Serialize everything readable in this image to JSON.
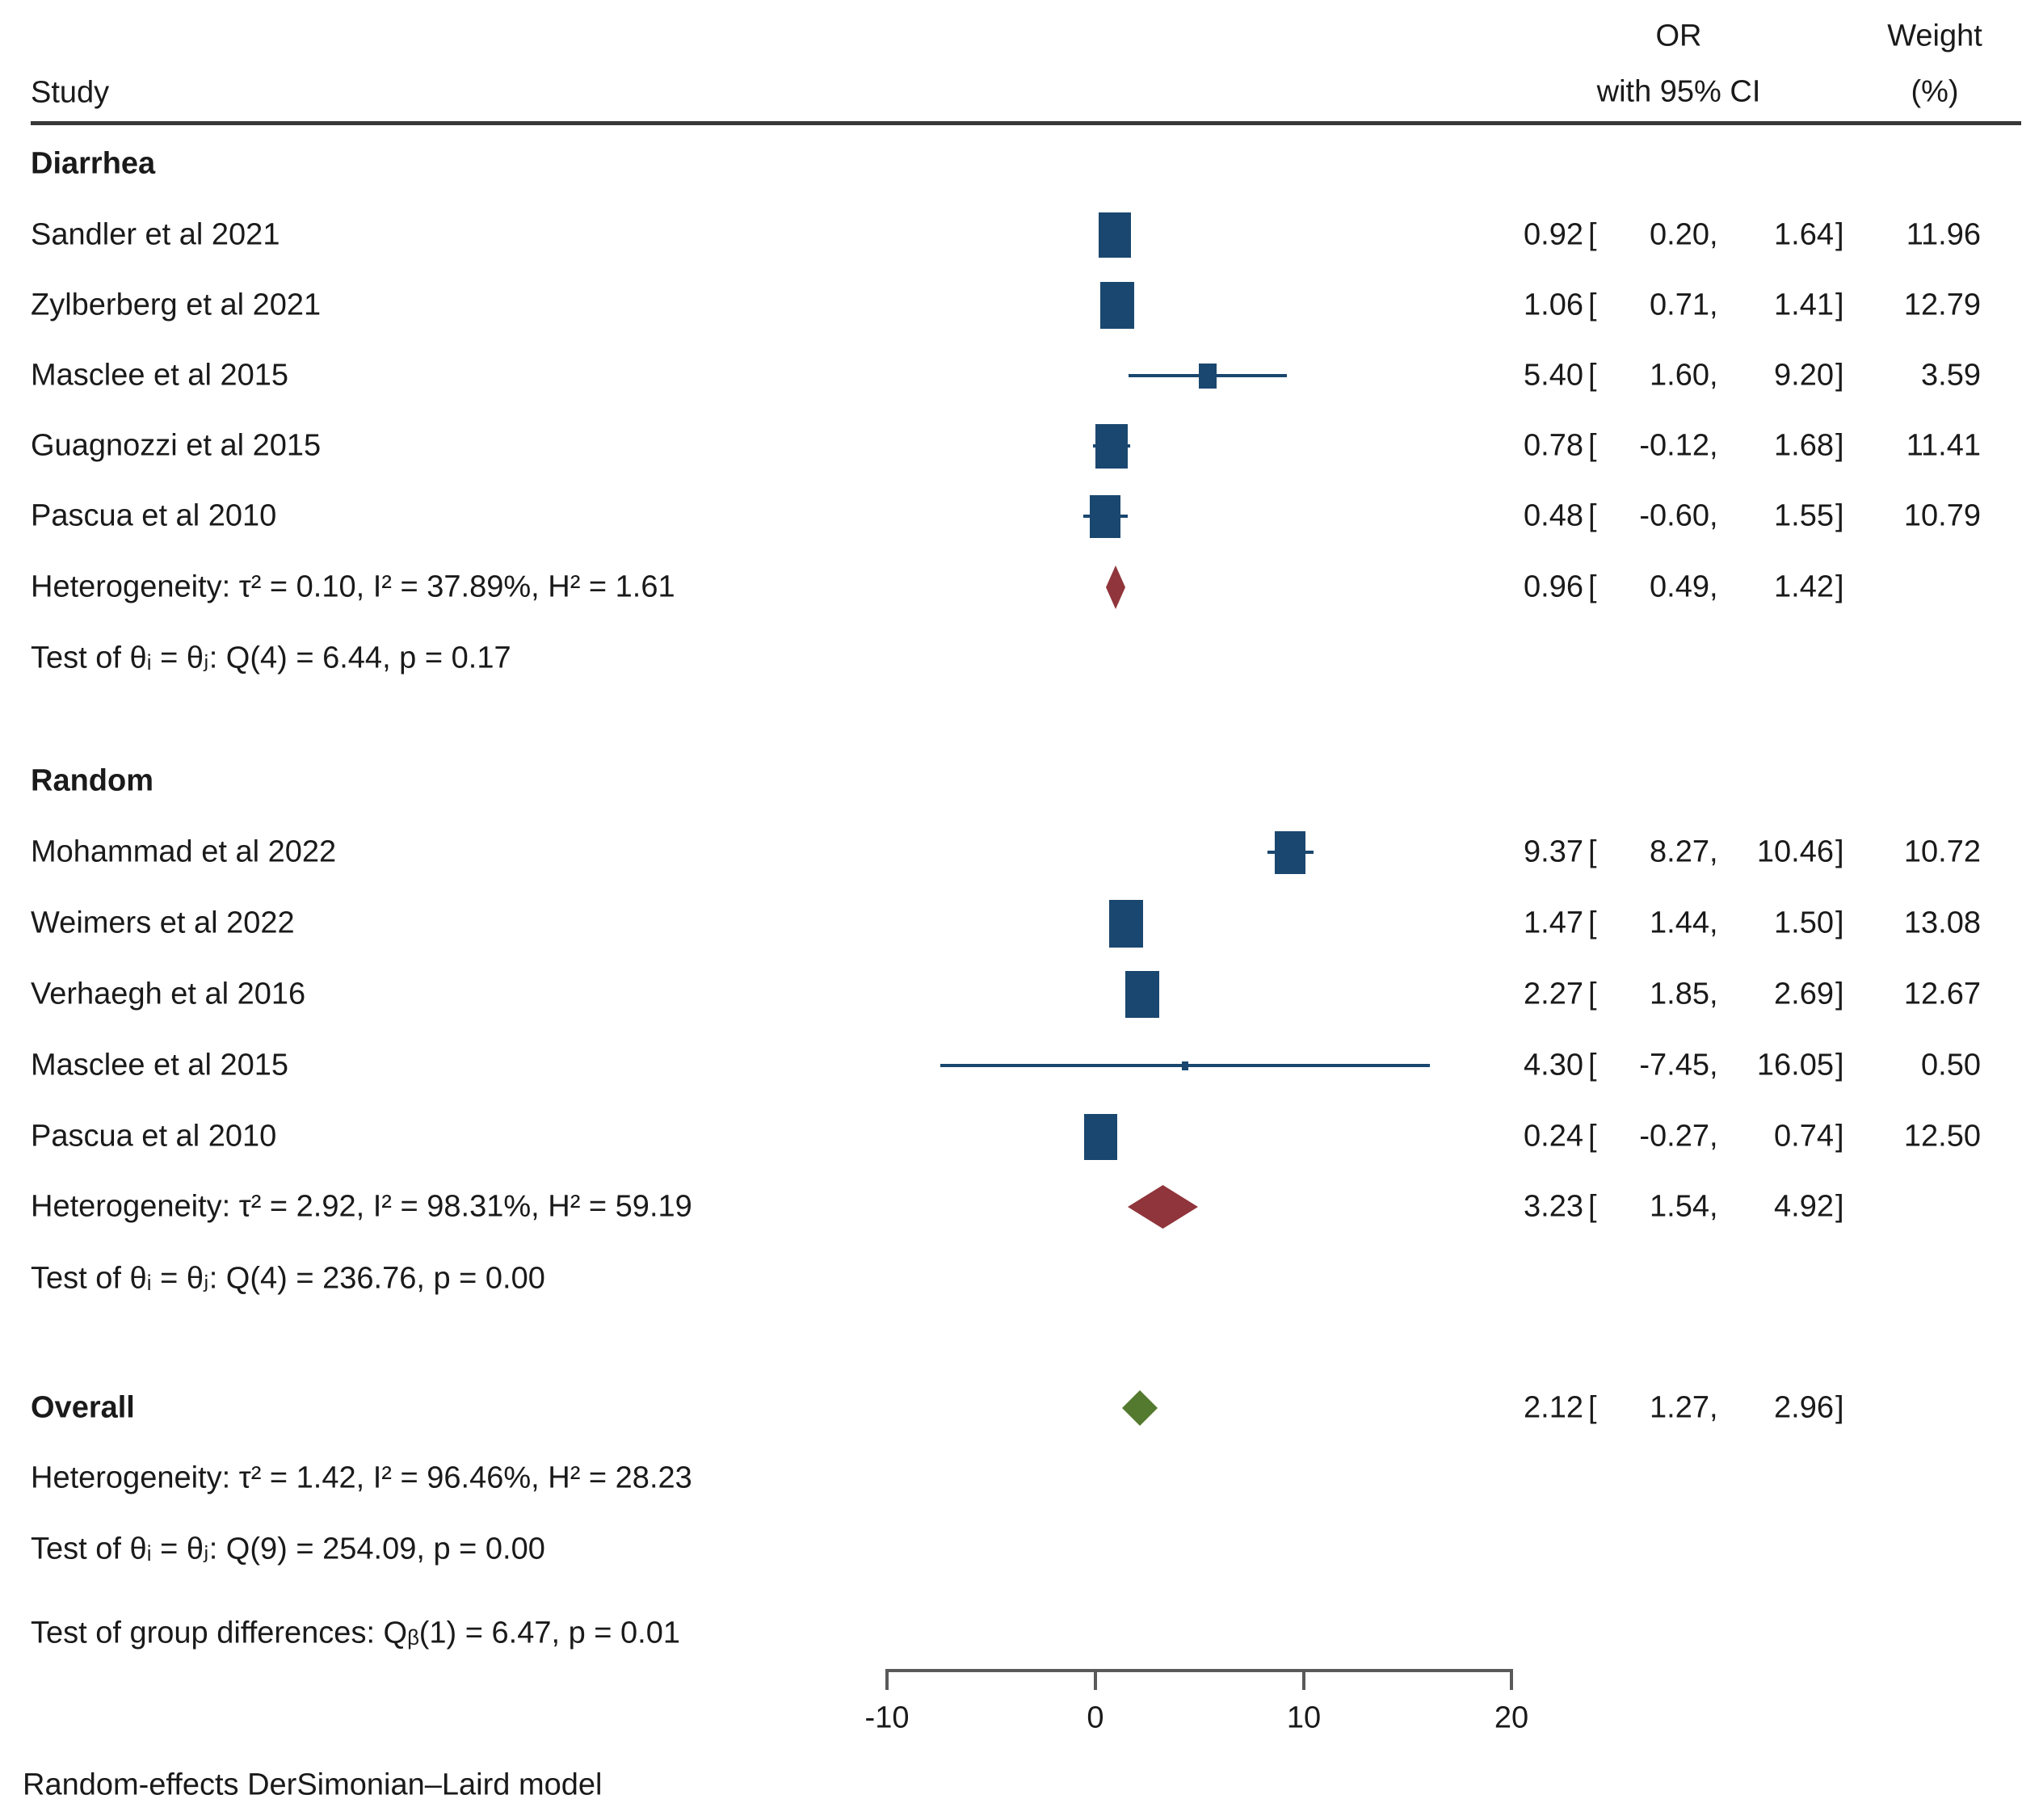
{
  "header": {
    "study": "Study",
    "or_line1": "OR",
    "or_line2": "with 95% CI",
    "weight_line1": "Weight",
    "weight_line2": "(%)"
  },
  "format": {
    "open_bracket": "[",
    "comma": ",",
    "close_bracket": "]"
  },
  "footer": "Random-effects DerSimonian–Laird model",
  "colors": {
    "square": "#1a476f",
    "ci_line": "#1a476f",
    "group_diamond": "#90353b",
    "overall_diamond": "#537a2e",
    "axis": "#5a5a5a",
    "rule": "#383838",
    "text": "#1a1a1a"
  },
  "chart_data": {
    "type": "scatter",
    "subtype": "forest-plot",
    "effect_measure": "OR",
    "xlim": [
      -10,
      20
    ],
    "ticks": [
      -10,
      0,
      10,
      20
    ],
    "tick_labels": [
      "-10",
      "0",
      "10",
      "20"
    ],
    "groups": [
      {
        "name": "Diarrhea",
        "studies": [
          {
            "label": "Sandler et al 2021",
            "est": "0.92",
            "lo": "0.20",
            "hi": "1.64",
            "weight": "11.96"
          },
          {
            "label": "Zylberberg et al 2021",
            "est": "1.06",
            "lo": "0.71",
            "hi": "1.41",
            "weight": "12.79"
          },
          {
            "label": "Masclee et al 2015",
            "est": "5.40",
            "lo": "1.60",
            "hi": "9.20",
            "weight": "3.59"
          },
          {
            "label": "Guagnozzi et al 2015",
            "est": "0.78",
            "lo": "-0.12",
            "hi": "1.68",
            "weight": "11.41"
          },
          {
            "label": "Pascua et al 2010",
            "est": "0.48",
            "lo": "-0.60",
            "hi": "1.55",
            "weight": "10.79"
          }
        ],
        "heterogeneity": "Heterogeneity: τ² = 0.10, I² = 37.89%, H² = 1.61",
        "summary": {
          "est": "0.96",
          "lo": "0.49",
          "hi": "1.42"
        },
        "test": "Test of θᵢ = θⱼ: Q(4) = 6.44, p = 0.17"
      },
      {
        "name": "Random",
        "studies": [
          {
            "label": "Mohammad et al 2022",
            "est": "9.37",
            "lo": "8.27",
            "hi": "10.46",
            "weight": "10.72"
          },
          {
            "label": "Weimers et al 2022",
            "est": "1.47",
            "lo": "1.44",
            "hi": "1.50",
            "weight": "13.08"
          },
          {
            "label": "Verhaegh et al 2016",
            "est": "2.27",
            "lo": "1.85",
            "hi": "2.69",
            "weight": "12.67"
          },
          {
            "label": "Masclee et al 2015",
            "est": "4.30",
            "lo": "-7.45",
            "hi": "16.05",
            "weight": "0.50"
          },
          {
            "label": "Pascua et al 2010",
            "est": "0.24",
            "lo": "-0.27",
            "hi": "0.74",
            "weight": "12.50"
          }
        ],
        "heterogeneity": "Heterogeneity: τ² = 2.92, I² = 98.31%, H² = 59.19",
        "summary": {
          "est": "3.23",
          "lo": "1.54",
          "hi": "4.92"
        },
        "test": "Test of θᵢ = θⱼ: Q(4) = 236.76, p = 0.00"
      }
    ],
    "overall": {
      "label": "Overall",
      "est": "2.12",
      "lo": "1.27",
      "hi": "2.96",
      "heterogeneity": "Heterogeneity: τ² = 1.42, I² = 96.46%, H² = 28.23",
      "test": "Test of θᵢ = θⱼ: Q(9) = 254.09, p = 0.00"
    },
    "group_difference": "Test of group differences: Qᵦ(1) = 6.47, p = 0.01"
  }
}
